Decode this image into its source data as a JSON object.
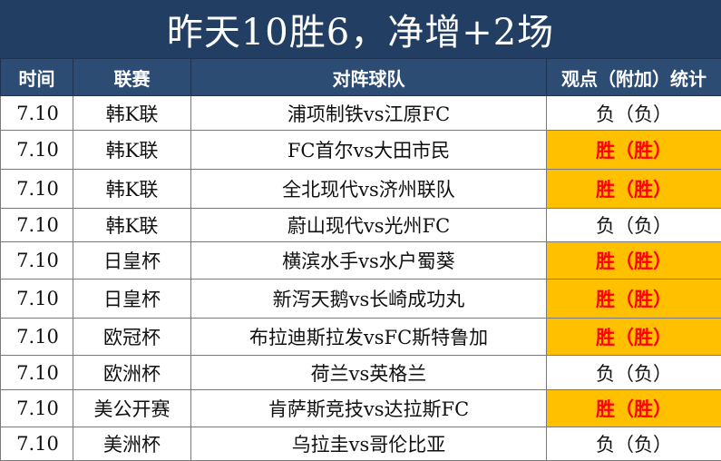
{
  "title": "昨天10胜6，净增+2场",
  "headers": [
    "时间",
    "联赛",
    "对阵球队",
    "观点（附加）统计"
  ],
  "colors": {
    "banner": "#223f63",
    "header": "#2c4c73",
    "win_fill": "#ffc000",
    "win_text": "#ff0000"
  },
  "rows": [
    {
      "time": "7.10",
      "league": "韩K联",
      "match": "浦项制铁vs江原FC",
      "result": "负（负）",
      "is_win": false
    },
    {
      "time": "7.10",
      "league": "韩K联",
      "match": "FC首尔vs大田市民",
      "result": "胜（胜）",
      "is_win": true
    },
    {
      "time": "7.10",
      "league": "韩K联",
      "match": "全北现代vs济州联队",
      "result": "胜（胜）",
      "is_win": true
    },
    {
      "time": "7.10",
      "league": "韩K联",
      "match": "蔚山现代vs光州FC",
      "result": "负（负）",
      "is_win": false
    },
    {
      "time": "7.10",
      "league": "日皇杯",
      "match": "横滨水手vs水户蜀葵",
      "result": "胜（胜）",
      "is_win": true
    },
    {
      "time": "7.10",
      "league": "日皇杯",
      "match": "新泻天鹅vs长崎成功丸",
      "result": "胜（胜）",
      "is_win": true
    },
    {
      "time": "7.10",
      "league": "欧冠杯",
      "match": "布拉迪斯拉发vsFC斯特鲁加",
      "result": "胜（胜）",
      "is_win": true
    },
    {
      "time": "7.10",
      "league": "欧洲杯",
      "match": "荷兰vs英格兰",
      "result": "负（负）",
      "is_win": false
    },
    {
      "time": "7.10",
      "league": "美公开赛",
      "match": "肯萨斯竞技vs达拉斯FC",
      "result": "胜（胜）",
      "is_win": true
    },
    {
      "time": "7.10",
      "league": "美洲杯",
      "match": "乌拉圭vs哥伦比亚",
      "result": "负（负）",
      "is_win": false
    }
  ]
}
